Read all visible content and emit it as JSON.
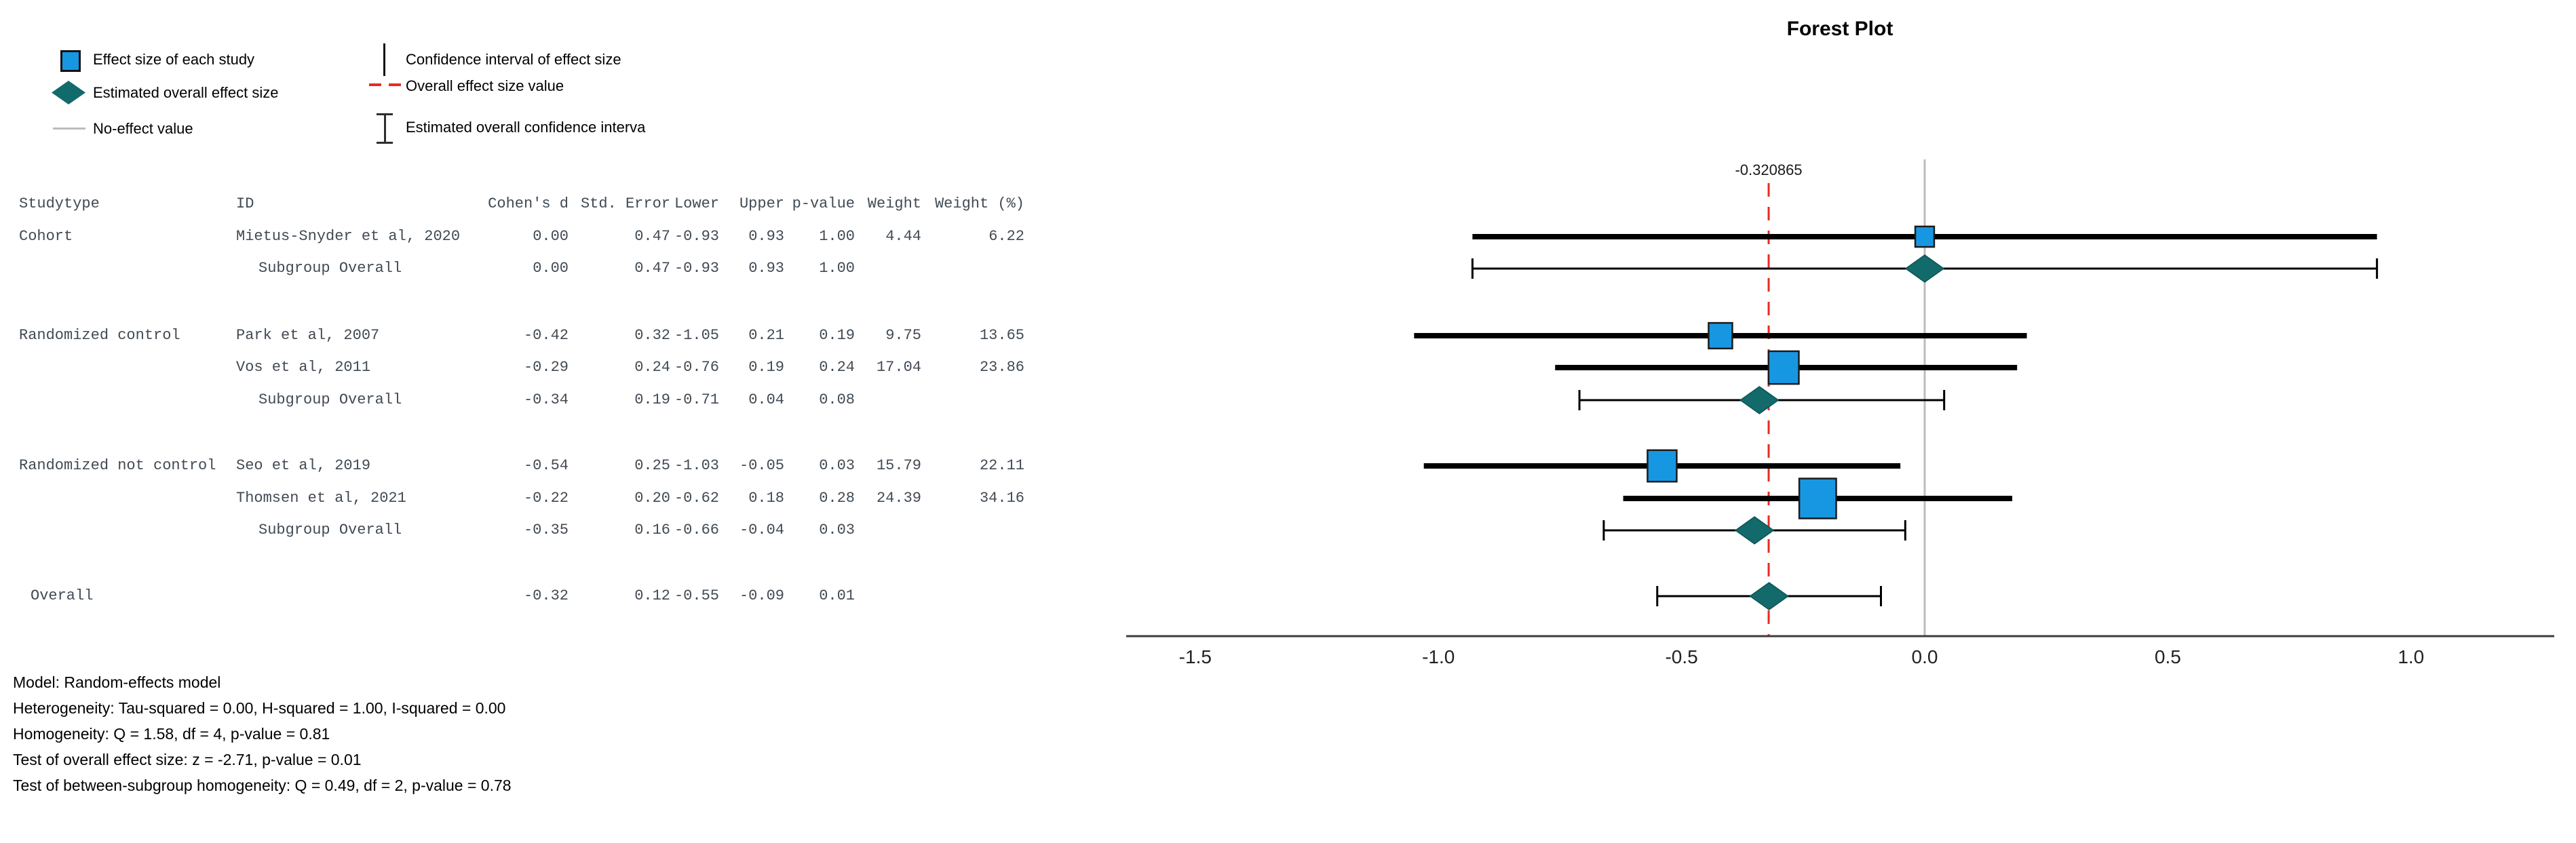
{
  "figure": {
    "title": "Forest Plot"
  },
  "legend": {
    "items": [
      {
        "icon": "effect-size-square-icon",
        "label": "Effect size of each study"
      },
      {
        "icon": "overall-effect-diamond-icon",
        "label": "Estimated overall effect size"
      },
      {
        "icon": "no-effect-line-icon",
        "label": "No-effect value"
      },
      {
        "icon": "confidence-interval-line-icon",
        "label": "Confidence interval of effect size"
      },
      {
        "icon": "overall-effect-dashed-line-icon",
        "label": "Overall effect size value"
      },
      {
        "icon": "overall-ci-ibeam-icon",
        "label": "Estimated overall confidence interva"
      }
    ]
  },
  "table": {
    "columns": [
      {
        "key": "studytype",
        "label": "Studytype",
        "align": "left"
      },
      {
        "key": "id",
        "label": "ID",
        "align": "left"
      },
      {
        "key": "cohens_d",
        "label": "Cohen's d",
        "align": "right"
      },
      {
        "key": "std_error",
        "label": "Std. Error",
        "align": "right"
      },
      {
        "key": "lower",
        "label": "Lower",
        "align": "right"
      },
      {
        "key": "upper",
        "label": "Upper",
        "align": "right"
      },
      {
        "key": "p_value",
        "label": "p-value",
        "align": "right"
      },
      {
        "key": "weight",
        "label": "Weight",
        "align": "right"
      },
      {
        "key": "weight_pct",
        "label": "Weight (%)",
        "align": "right"
      }
    ],
    "rows": [
      {
        "kind": "study",
        "studytype": "Cohort",
        "id": "Mietus-Snyder et al, 2020",
        "cohens_d": "0.00",
        "std_error": "0.47",
        "lower": "-0.93",
        "upper": "0.93",
        "p_value": "1.00",
        "weight": "4.44",
        "weight_pct": "6.22"
      },
      {
        "kind": "subgroup",
        "studytype": "",
        "id": "Subgroup Overall",
        "cohens_d": "0.00",
        "std_error": "0.47",
        "lower": "-0.93",
        "upper": "0.93",
        "p_value": "1.00",
        "weight": "",
        "weight_pct": ""
      },
      {
        "kind": "study",
        "studytype": "Randomized control",
        "id": "Park et al, 2007",
        "cohens_d": "-0.42",
        "std_error": "0.32",
        "lower": "-1.05",
        "upper": "0.21",
        "p_value": "0.19",
        "weight": "9.75",
        "weight_pct": "13.65"
      },
      {
        "kind": "study",
        "studytype": "",
        "id": "Vos et al, 2011",
        "cohens_d": "-0.29",
        "std_error": "0.24",
        "lower": "-0.76",
        "upper": "0.19",
        "p_value": "0.24",
        "weight": "17.04",
        "weight_pct": "23.86"
      },
      {
        "kind": "subgroup",
        "studytype": "",
        "id": "Subgroup Overall",
        "cohens_d": "-0.34",
        "std_error": "0.19",
        "lower": "-0.71",
        "upper": "0.04",
        "p_value": "0.08",
        "weight": "",
        "weight_pct": ""
      },
      {
        "kind": "study",
        "studytype": "Randomized not control",
        "id": "Seo et al, 2019",
        "cohens_d": "-0.54",
        "std_error": "0.25",
        "lower": "-1.03",
        "upper": "-0.05",
        "p_value": "0.03",
        "weight": "15.79",
        "weight_pct": "22.11"
      },
      {
        "kind": "study",
        "studytype": "",
        "id": "Thomsen et al, 2021",
        "cohens_d": "-0.22",
        "std_error": "0.20",
        "lower": "-0.62",
        "upper": "0.18",
        "p_value": "0.28",
        "weight": "24.39",
        "weight_pct": "34.16"
      },
      {
        "kind": "subgroup",
        "studytype": "",
        "id": "Subgroup Overall",
        "cohens_d": "-0.35",
        "std_error": "0.16",
        "lower": "-0.66",
        "upper": "-0.04",
        "p_value": "0.03",
        "weight": "",
        "weight_pct": ""
      },
      {
        "kind": "overall",
        "studytype": "Overall",
        "id": "",
        "cohens_d": "-0.32",
        "std_error": "0.12",
        "lower": "-0.55",
        "upper": "-0.09",
        "p_value": "0.01",
        "weight": "",
        "weight_pct": ""
      }
    ]
  },
  "stats": {
    "lines": [
      "Model: Random-effects model",
      "Heterogeneity: Tau-squared = 0.00, H-squared = 1.00, I-squared = 0.00",
      "Homogeneity: Q = 1.58, df = 4, p-value = 0.81",
      "Test of overall effect size: z = -2.71, p-value = 0.01",
      "Test of between-subgroup homogeneity: Q = 0.49, df = 2, p-value = 0.78"
    ]
  },
  "chart_data": {
    "type": "forest",
    "title": "Forest Plot",
    "xlim": [
      -1.5,
      1.0
    ],
    "x_ticks": [
      {
        "value": -1.5,
        "label": "-1.5"
      },
      {
        "value": -1.0,
        "label": "-1.0"
      },
      {
        "value": -0.5,
        "label": "-0.5"
      },
      {
        "value": 0.0,
        "label": "0.0"
      },
      {
        "value": 0.5,
        "label": "0.5"
      },
      {
        "value": 1.0,
        "label": "1.0"
      }
    ],
    "reference_lines": {
      "no_effect_value": 0.0,
      "overall_effect_value": -0.320865,
      "overall_effect_label": "-0.320865"
    },
    "rows": [
      {
        "label": "Mietus-Snyder et al, 2020",
        "type": "study",
        "estimate": 0.0,
        "lower": -0.93,
        "upper": 0.93,
        "weight_pct": 6.22
      },
      {
        "label": "Cohort Subgroup Overall",
        "type": "summary",
        "estimate": 0.0,
        "lower": -0.93,
        "upper": 0.93
      },
      {
        "label": "Park et al, 2007",
        "type": "study",
        "estimate": -0.42,
        "lower": -1.05,
        "upper": 0.21,
        "weight_pct": 13.65
      },
      {
        "label": "Vos et al, 2011",
        "type": "study",
        "estimate": -0.29,
        "lower": -0.76,
        "upper": 0.19,
        "weight_pct": 23.86
      },
      {
        "label": "Randomized control Subgroup Overall",
        "type": "summary",
        "estimate": -0.34,
        "lower": -0.71,
        "upper": 0.04
      },
      {
        "label": "Seo et al, 2019",
        "type": "study",
        "estimate": -0.54,
        "lower": -1.03,
        "upper": -0.05,
        "weight_pct": 22.11
      },
      {
        "label": "Thomsen et al, 2021",
        "type": "study",
        "estimate": -0.22,
        "lower": -0.62,
        "upper": 0.18,
        "weight_pct": 34.16
      },
      {
        "label": "Randomized not control Subgroup Overall",
        "type": "summary",
        "estimate": -0.35,
        "lower": -0.66,
        "upper": -0.04
      },
      {
        "label": "Overall",
        "type": "summary",
        "estimate": -0.32,
        "lower": -0.55,
        "upper": -0.09
      }
    ],
    "colors": {
      "study_marker": "#1797e2",
      "study_marker_border": "#1b1b1b",
      "summary_marker": "#136a6b",
      "ci_line": "#000000",
      "overall_effect_line": "#e72c21",
      "no_effect_line": "#bcbcbc",
      "axis_line": "#3c3c3c"
    },
    "legend_position": "top-left",
    "grid": false
  }
}
